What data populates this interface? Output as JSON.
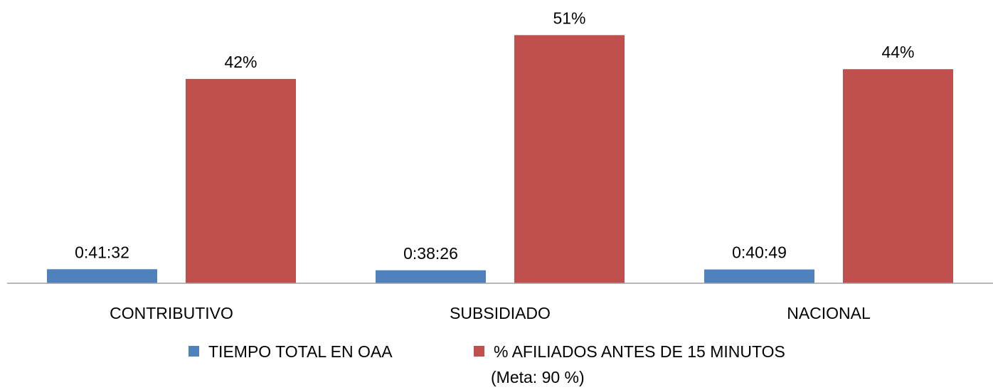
{
  "chart_data": {
    "type": "bar",
    "categories": [
      "CONTRIBUTIVO",
      "SUBSIDIADO",
      "NACIONAL"
    ],
    "series": [
      {
        "name": "TIEMPO TOTAL EN OAA",
        "color": "#4f81bd",
        "values": [
          0.028843,
          0.02669,
          0.028345
        ],
        "value_labels": [
          "0:41:32",
          "0:38:26",
          "0:40:49"
        ]
      },
      {
        "name": "% AFILIADOS ANTES DE 15 MINUTOS\n(Meta: 90 %)",
        "color": "#c0504d",
        "values": [
          0.42,
          0.51,
          0.44
        ],
        "value_labels": [
          "42%",
          "51%",
          "44%"
        ]
      }
    ],
    "ylim": [
      0,
      0.55
    ],
    "legend": "bottom"
  }
}
